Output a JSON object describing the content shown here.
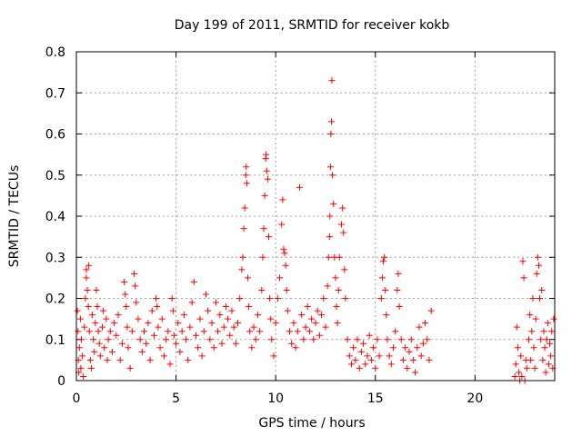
{
  "chart_data": {
    "type": "scatter",
    "title": "Day 199 of 2011, SRMTID for receiver kokb",
    "xlabel": "GPS time / hours",
    "ylabel": "SRMTID / TECUs",
    "xlim": [
      0,
      24
    ],
    "ylim": [
      0,
      0.8
    ],
    "xticks": [
      0,
      5,
      10,
      15,
      20
    ],
    "yticks": [
      0,
      0.1,
      0.2,
      0.3,
      0.4,
      0.5,
      0.6,
      0.7,
      0.8
    ],
    "ytick_labels": [
      "0",
      "0.1",
      "0.2",
      "0.3",
      "0.4",
      "0.5",
      "0.6",
      "0.7",
      "0.8"
    ],
    "grid": true,
    "marker": "+",
    "color": "#ff0000",
    "series": [
      {
        "name": "SRMTID",
        "points": [
          [
            0.05,
            0.17
          ],
          [
            0.08,
            0.12
          ],
          [
            0.1,
            0.05
          ],
          [
            0.12,
            0.02
          ],
          [
            0.15,
            0.08
          ],
          [
            0.2,
            0.15
          ],
          [
            0.22,
            0.03
          ],
          [
            0.25,
            0.1
          ],
          [
            0.3,
            0.06
          ],
          [
            0.35,
            0.01
          ],
          [
            0.4,
            0.13
          ],
          [
            0.45,
            0.2
          ],
          [
            0.5,
            0.25
          ],
          [
            0.5,
            0.27
          ],
          [
            0.55,
            0.22
          ],
          [
            0.6,
            0.18
          ],
          [
            0.62,
            0.28
          ],
          [
            0.65,
            0.12
          ],
          [
            0.7,
            0.05
          ],
          [
            0.75,
            0.03
          ],
          [
            0.8,
            0.16
          ],
          [
            0.85,
            0.1
          ],
          [
            0.9,
            0.07
          ],
          [
            0.95,
            0.14
          ],
          [
            1.0,
            0.22
          ],
          [
            1.05,
            0.18
          ],
          [
            1.1,
            0.12
          ],
          [
            1.15,
            0.09
          ],
          [
            1.2,
            0.06
          ],
          [
            1.3,
            0.13
          ],
          [
            1.35,
            0.17
          ],
          [
            1.4,
            0.08
          ],
          [
            1.5,
            0.15
          ],
          [
            1.55,
            0.05
          ],
          [
            1.6,
            0.1
          ],
          [
            1.7,
            0.12
          ],
          [
            1.8,
            0.07
          ],
          [
            1.9,
            0.14
          ],
          [
            2.0,
            0.11
          ],
          [
            2.1,
            0.16
          ],
          [
            2.2,
            0.05
          ],
          [
            2.3,
            0.09
          ],
          [
            2.4,
            0.24
          ],
          [
            2.45,
            0.21
          ],
          [
            2.5,
            0.18
          ],
          [
            2.55,
            0.13
          ],
          [
            2.6,
            0.08
          ],
          [
            2.7,
            0.03
          ],
          [
            2.8,
            0.12
          ],
          [
            2.9,
            0.26
          ],
          [
            2.95,
            0.23
          ],
          [
            3.0,
            0.19
          ],
          [
            3.1,
            0.15
          ],
          [
            3.2,
            0.1
          ],
          [
            3.3,
            0.07
          ],
          [
            3.4,
            0.12
          ],
          [
            3.5,
            0.09
          ],
          [
            3.6,
            0.14
          ],
          [
            3.7,
            0.05
          ],
          [
            3.8,
            0.17
          ],
          [
            3.9,
            0.11
          ],
          [
            4.0,
            0.2
          ],
          [
            4.05,
            0.18
          ],
          [
            4.1,
            0.13
          ],
          [
            4.2,
            0.08
          ],
          [
            4.3,
            0.15
          ],
          [
            4.4,
            0.06
          ],
          [
            4.5,
            0.1
          ],
          [
            4.6,
            0.12
          ],
          [
            4.7,
            0.04
          ],
          [
            4.8,
            0.2
          ],
          [
            4.85,
            0.17
          ],
          [
            4.9,
            0.11
          ],
          [
            5.0,
            0.09
          ],
          [
            5.1,
            0.14
          ],
          [
            5.2,
            0.07
          ],
          [
            5.3,
            0.12
          ],
          [
            5.4,
            0.16
          ],
          [
            5.5,
            0.1
          ],
          [
            5.6,
            0.05
          ],
          [
            5.7,
            0.13
          ],
          [
            5.8,
            0.19
          ],
          [
            5.9,
            0.24
          ],
          [
            6.0,
            0.11
          ],
          [
            6.1,
            0.08
          ],
          [
            6.2,
            0.15
          ],
          [
            6.3,
            0.06
          ],
          [
            6.4,
            0.12
          ],
          [
            6.5,
            0.21
          ],
          [
            6.6,
            0.17
          ],
          [
            6.7,
            0.1
          ],
          [
            6.8,
            0.14
          ],
          [
            6.9,
            0.08
          ],
          [
            7.0,
            0.19
          ],
          [
            7.1,
            0.12
          ],
          [
            7.2,
            0.16
          ],
          [
            7.3,
            0.09
          ],
          [
            7.4,
            0.13
          ],
          [
            7.5,
            0.18
          ],
          [
            7.6,
            0.15
          ],
          [
            7.7,
            0.11
          ],
          [
            7.8,
            0.17
          ],
          [
            7.9,
            0.13
          ],
          [
            8.0,
            0.09
          ],
          [
            8.1,
            0.14
          ],
          [
            8.2,
            0.2
          ],
          [
            8.3,
            0.27
          ],
          [
            8.35,
            0.3
          ],
          [
            8.4,
            0.37
          ],
          [
            8.45,
            0.42
          ],
          [
            8.5,
            0.5
          ],
          [
            8.52,
            0.52
          ],
          [
            8.55,
            0.48
          ],
          [
            8.6,
            0.25
          ],
          [
            8.65,
            0.18
          ],
          [
            8.7,
            0.12
          ],
          [
            8.8,
            0.08
          ],
          [
            8.9,
            0.13
          ],
          [
            9.0,
            0.1
          ],
          [
            9.1,
            0.16
          ],
          [
            9.2,
            0.12
          ],
          [
            9.3,
            0.22
          ],
          [
            9.35,
            0.3
          ],
          [
            9.4,
            0.37
          ],
          [
            9.45,
            0.45
          ],
          [
            9.5,
            0.54
          ],
          [
            9.52,
            0.55
          ],
          [
            9.55,
            0.51
          ],
          [
            9.6,
            0.49
          ],
          [
            9.65,
            0.35
          ],
          [
            9.7,
            0.2
          ],
          [
            9.75,
            0.15
          ],
          [
            9.8,
            0.1
          ],
          [
            9.9,
            0.06
          ],
          [
            10.0,
            0.14
          ],
          [
            10.1,
            0.2
          ],
          [
            10.2,
            0.25
          ],
          [
            10.3,
            0.38
          ],
          [
            10.35,
            0.44
          ],
          [
            10.4,
            0.32
          ],
          [
            10.45,
            0.31
          ],
          [
            10.5,
            0.28
          ],
          [
            10.55,
            0.22
          ],
          [
            10.6,
            0.17
          ],
          [
            10.7,
            0.12
          ],
          [
            10.8,
            0.09
          ],
          [
            10.9,
            0.14
          ],
          [
            11.0,
            0.08
          ],
          [
            11.1,
            0.12
          ],
          [
            11.2,
            0.47
          ],
          [
            11.3,
            0.16
          ],
          [
            11.4,
            0.1
          ],
          [
            11.5,
            0.13
          ],
          [
            11.6,
            0.18
          ],
          [
            11.7,
            0.12
          ],
          [
            11.8,
            0.15
          ],
          [
            11.9,
            0.1
          ],
          [
            12.0,
            0.14
          ],
          [
            12.1,
            0.17
          ],
          [
            12.2,
            0.11
          ],
          [
            12.3,
            0.16
          ],
          [
            12.4,
            0.2
          ],
          [
            12.5,
            0.13
          ],
          [
            12.6,
            0.23
          ],
          [
            12.65,
            0.3
          ],
          [
            12.7,
            0.35
          ],
          [
            12.72,
            0.4
          ],
          [
            12.75,
            0.52
          ],
          [
            12.77,
            0.6
          ],
          [
            12.8,
            0.63
          ],
          [
            12.82,
            0.73
          ],
          [
            12.85,
            0.5
          ],
          [
            12.9,
            0.43
          ],
          [
            12.95,
            0.3
          ],
          [
            13.0,
            0.25
          ],
          [
            13.05,
            0.18
          ],
          [
            13.1,
            0.14
          ],
          [
            13.15,
            0.22
          ],
          [
            13.2,
            0.3
          ],
          [
            13.3,
            0.38
          ],
          [
            13.35,
            0.42
          ],
          [
            13.4,
            0.36
          ],
          [
            13.45,
            0.27
          ],
          [
            13.5,
            0.2
          ],
          [
            13.6,
            0.1
          ],
          [
            13.7,
            0.06
          ],
          [
            13.8,
            0.04
          ],
          [
            13.9,
            0.08
          ],
          [
            14.0,
            0.05
          ],
          [
            14.1,
            0.1
          ],
          [
            14.2,
            0.03
          ],
          [
            14.3,
            0.07
          ],
          [
            14.4,
            0.09
          ],
          [
            14.5,
            0.04
          ],
          [
            14.6,
            0.06
          ],
          [
            14.7,
            0.11
          ],
          [
            14.8,
            0.05
          ],
          [
            14.9,
            0.08
          ],
          [
            15.0,
            0.03
          ],
          [
            15.1,
            0.1
          ],
          [
            15.2,
            0.06
          ],
          [
            15.3,
            0.2
          ],
          [
            15.35,
            0.25
          ],
          [
            15.4,
            0.29
          ],
          [
            15.45,
            0.3
          ],
          [
            15.5,
            0.22
          ],
          [
            15.55,
            0.16
          ],
          [
            15.6,
            0.1
          ],
          [
            15.7,
            0.06
          ],
          [
            15.8,
            0.04
          ],
          [
            15.9,
            0.08
          ],
          [
            16.0,
            0.12
          ],
          [
            16.1,
            0.22
          ],
          [
            16.15,
            0.26
          ],
          [
            16.2,
            0.18
          ],
          [
            16.3,
            0.1
          ],
          [
            16.4,
            0.05
          ],
          [
            16.5,
            0.08
          ],
          [
            16.6,
            0.03
          ],
          [
            16.7,
            0.07
          ],
          [
            16.8,
            0.1
          ],
          [
            16.9,
            0.05
          ],
          [
            17.0,
            0.02
          ],
          [
            17.1,
            0.08
          ],
          [
            17.2,
            0.13
          ],
          [
            17.3,
            0.06
          ],
          [
            17.4,
            0.09
          ],
          [
            17.5,
            0.14
          ],
          [
            17.6,
            0.1
          ],
          [
            17.7,
            0.05
          ],
          [
            17.8,
            0.17
          ],
          [
            22.0,
            0.01
          ],
          [
            22.05,
            0.04
          ],
          [
            22.1,
            0.13
          ],
          [
            22.15,
            0.08
          ],
          [
            22.2,
            0.02
          ],
          [
            22.25,
            0.0
          ],
          [
            22.3,
            0.06
          ],
          [
            22.35,
            0.01
          ],
          [
            22.4,
            0.29
          ],
          [
            22.45,
            0.25
          ],
          [
            22.5,
            0.0
          ],
          [
            22.55,
            0.05
          ],
          [
            22.6,
            0.03
          ],
          [
            22.7,
            0.1
          ],
          [
            22.75,
            0.16
          ],
          [
            22.8,
            0.05
          ],
          [
            22.85,
            0.12
          ],
          [
            22.9,
            0.2
          ],
          [
            22.95,
            0.08
          ],
          [
            23.0,
            0.03
          ],
          [
            23.05,
            0.15
          ],
          [
            23.1,
            0.26
          ],
          [
            23.15,
            0.3
          ],
          [
            23.2,
            0.28
          ],
          [
            23.25,
            0.2
          ],
          [
            23.3,
            0.1
          ],
          [
            23.35,
            0.22
          ],
          [
            23.4,
            0.05
          ],
          [
            23.45,
            0.12
          ],
          [
            23.5,
            0.08
          ],
          [
            23.55,
            0.02
          ],
          [
            23.6,
            0.1
          ],
          [
            23.65,
            0.14
          ],
          [
            23.7,
            0.04
          ],
          [
            23.75,
            0.09
          ],
          [
            23.8,
            0.06
          ],
          [
            23.85,
            0.12
          ],
          [
            23.9,
            0.03
          ],
          [
            23.95,
            0.15
          ]
        ]
      }
    ]
  }
}
